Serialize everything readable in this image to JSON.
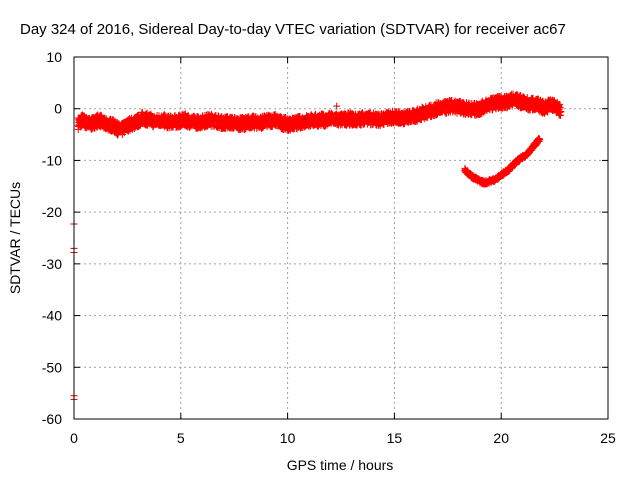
{
  "chart_data": {
    "type": "scatter",
    "title": "Day 324 of 2016, Sidereal Day-to-day VTEC variation (SDTVAR) for receiver ac67",
    "xlabel": "GPS time / hours",
    "ylabel": "SDTVAR / TECUs",
    "xlim": [
      0,
      25
    ],
    "ylim": [
      -60,
      10
    ],
    "xticks": [
      0,
      5,
      10,
      15,
      20,
      25
    ],
    "yticks": [
      10,
      0,
      -10,
      -20,
      -30,
      -40,
      -50,
      -60
    ],
    "grid": true,
    "legend": "none",
    "colors": {
      "series": "#ff0000",
      "outlier": "#cc0000",
      "grid": "#a0a0a0",
      "axis": "#000000"
    },
    "series": [
      {
        "name": "main-band",
        "color": "#ff0000",
        "points": [
          [
            0.2,
            -2.8
          ],
          [
            0.4,
            -2.2
          ],
          [
            0.6,
            -2.8
          ],
          [
            0.8,
            -3.0
          ],
          [
            1.0,
            -2.5
          ],
          [
            1.2,
            -2.2
          ],
          [
            1.4,
            -3.0
          ],
          [
            1.6,
            -3.0
          ],
          [
            1.8,
            -3.2
          ],
          [
            2.0,
            -3.8
          ],
          [
            2.2,
            -4.2
          ],
          [
            2.4,
            -3.5
          ],
          [
            2.6,
            -3.0
          ],
          [
            2.8,
            -2.8
          ],
          [
            3.0,
            -2.4
          ],
          [
            3.2,
            -1.8
          ],
          [
            3.4,
            -2.0
          ],
          [
            3.6,
            -2.2
          ],
          [
            3.8,
            -2.5
          ],
          [
            4.0,
            -2.2
          ],
          [
            4.2,
            -2.3
          ],
          [
            4.4,
            -2.6
          ],
          [
            4.6,
            -2.5
          ],
          [
            4.8,
            -2.5
          ],
          [
            5.0,
            -2.3
          ],
          [
            5.2,
            -2.2
          ],
          [
            5.4,
            -2.4
          ],
          [
            5.6,
            -2.6
          ],
          [
            5.8,
            -2.6
          ],
          [
            6.0,
            -2.5
          ],
          [
            6.2,
            -2.3
          ],
          [
            6.4,
            -2.2
          ],
          [
            6.6,
            -2.2
          ],
          [
            6.8,
            -2.6
          ],
          [
            7.0,
            -2.7
          ],
          [
            7.2,
            -2.6
          ],
          [
            7.4,
            -2.7
          ],
          [
            7.6,
            -2.8
          ],
          [
            7.8,
            -2.9
          ],
          [
            8.0,
            -2.8
          ],
          [
            8.2,
            -2.6
          ],
          [
            8.4,
            -2.6
          ],
          [
            8.6,
            -2.7
          ],
          [
            8.8,
            -2.6
          ],
          [
            9.0,
            -2.5
          ],
          [
            9.2,
            -2.3
          ],
          [
            9.4,
            -2.2
          ],
          [
            9.6,
            -2.6
          ],
          [
            9.8,
            -2.8
          ],
          [
            10.0,
            -3.0
          ],
          [
            10.2,
            -3.0
          ],
          [
            10.4,
            -2.8
          ],
          [
            10.6,
            -2.6
          ],
          [
            10.8,
            -2.4
          ],
          [
            11.0,
            -2.3
          ],
          [
            11.2,
            -2.3
          ],
          [
            11.4,
            -2.2
          ],
          [
            11.6,
            -2.2
          ],
          [
            11.8,
            -2.2
          ],
          [
            12.0,
            -2.0
          ],
          [
            12.2,
            -2.0
          ],
          [
            12.4,
            -2.2
          ],
          [
            12.6,
            -2.1
          ],
          [
            12.8,
            -2.0
          ],
          [
            13.0,
            -2.0
          ],
          [
            13.2,
            -2.2
          ],
          [
            13.4,
            -2.0
          ],
          [
            13.6,
            -1.8
          ],
          [
            13.8,
            -1.9
          ],
          [
            14.0,
            -2.0
          ],
          [
            14.2,
            -2.1
          ],
          [
            14.4,
            -2.0
          ],
          [
            14.6,
            -1.9
          ],
          [
            14.8,
            -1.7
          ],
          [
            15.0,
            -1.6
          ],
          [
            15.2,
            -1.7
          ],
          [
            15.4,
            -1.8
          ],
          [
            15.6,
            -1.6
          ],
          [
            15.8,
            -1.6
          ],
          [
            16.0,
            -1.4
          ],
          [
            16.2,
            -1.0
          ],
          [
            16.4,
            -0.8
          ],
          [
            16.6,
            -0.6
          ],
          [
            16.8,
            -0.3
          ],
          [
            17.0,
            0.0
          ],
          [
            17.2,
            0.1
          ],
          [
            17.4,
            0.2
          ],
          [
            17.6,
            0.5
          ],
          [
            17.8,
            0.3
          ],
          [
            18.0,
            0.3
          ],
          [
            18.2,
            0.2
          ],
          [
            18.4,
            0.0
          ],
          [
            18.6,
            0.0
          ],
          [
            18.8,
            -0.2
          ],
          [
            19.0,
            0.0
          ],
          [
            19.2,
            0.5
          ],
          [
            19.4,
            0.8
          ],
          [
            19.6,
            1.0
          ],
          [
            19.8,
            1.2
          ],
          [
            20.0,
            1.3
          ],
          [
            20.2,
            1.2
          ],
          [
            20.4,
            1.6
          ],
          [
            20.6,
            1.8
          ],
          [
            20.8,
            1.5
          ],
          [
            21.0,
            1.2
          ],
          [
            21.2,
            1.0
          ],
          [
            21.4,
            0.8
          ],
          [
            21.6,
            1.0
          ],
          [
            21.8,
            0.6
          ],
          [
            22.0,
            0.2
          ],
          [
            22.2,
            0.6
          ],
          [
            22.4,
            0.8
          ],
          [
            22.6,
            0.2
          ],
          [
            22.8,
            -0.6
          ]
        ]
      },
      {
        "name": "lower-arc",
        "color": "#ff0000",
        "points": [
          [
            18.3,
            -11.8
          ],
          [
            18.6,
            -13.0
          ],
          [
            18.9,
            -13.8
          ],
          [
            19.2,
            -14.3
          ],
          [
            19.5,
            -14.0
          ],
          [
            19.8,
            -13.5
          ],
          [
            20.1,
            -12.5
          ],
          [
            20.4,
            -11.6
          ],
          [
            20.7,
            -10.3
          ],
          [
            21.0,
            -9.4
          ],
          [
            21.3,
            -8.4
          ],
          [
            21.6,
            -6.8
          ],
          [
            21.8,
            -5.9
          ]
        ]
      },
      {
        "name": "outliers",
        "color": "#cc0000",
        "points": [
          [
            0,
            -22.3
          ],
          [
            0,
            -27.0
          ],
          [
            0,
            -27.8
          ],
          [
            0,
            -55.5
          ],
          [
            0,
            -56.2
          ],
          [
            12.3,
            0.5
          ],
          [
            10.8,
            -2.1
          ],
          [
            16.3,
            0.3
          ]
        ]
      }
    ]
  }
}
